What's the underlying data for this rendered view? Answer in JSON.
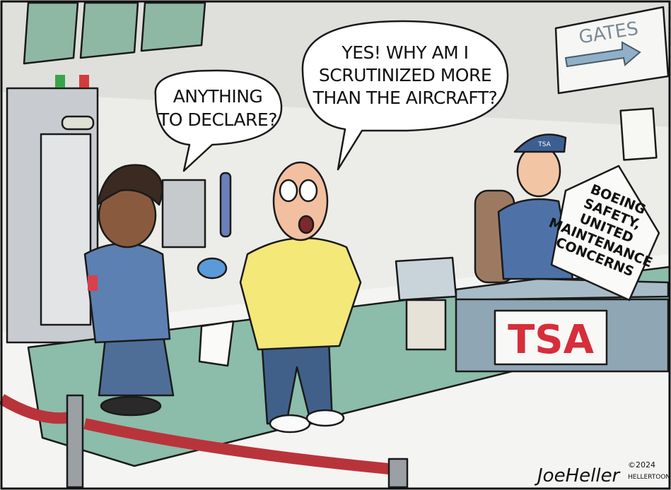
{
  "signs": {
    "gates": "GATES",
    "desk": "TSA",
    "hat": "TSA"
  },
  "speech_bubbles": [
    {
      "lines": [
        "ANYTHING",
        "TO DECLARE?"
      ]
    },
    {
      "lines": [
        "YES! WHY AM I",
        "SCRUTINIZED MORE",
        "THAN THE AIRCRAFT?"
      ]
    }
  ],
  "newspaper": {
    "lines": [
      "BOEING",
      "SAFETY,",
      "UNITED",
      "MAINTENANCE",
      "CONCERNS"
    ]
  },
  "signature": {
    "artist": "JoeHeller",
    "copyright": "©2024",
    "site": "HELLERTOON.com"
  }
}
